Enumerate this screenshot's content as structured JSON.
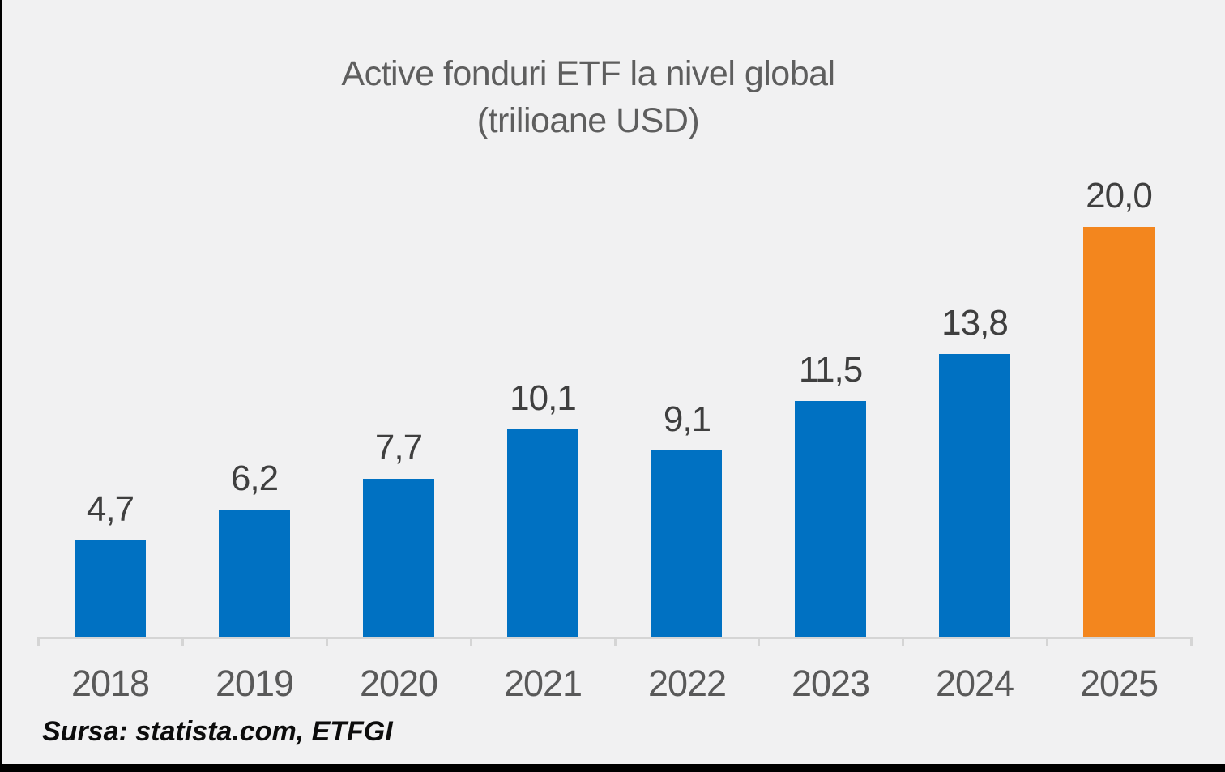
{
  "chart_data": {
    "type": "bar",
    "title": "Active fonduri ETF la nivel global",
    "subtitle": "(trilioane USD)",
    "categories": [
      "2018",
      "2019",
      "2020",
      "2021",
      "2022",
      "2023",
      "2024",
      "2025"
    ],
    "values": [
      4.7,
      6.2,
      7.7,
      10.1,
      9.1,
      11.5,
      13.8,
      20.0
    ],
    "value_labels": [
      "4,7",
      "6,2",
      "7,7",
      "10,1",
      "9,1",
      "11,5",
      "13,8",
      "20,0"
    ],
    "highlight_index": 7,
    "ylim": [
      0,
      20.8
    ],
    "grid": false,
    "legend": "none",
    "source": "Sursa: statista.com, ETFGI",
    "colors": {
      "bar": "#0071C2",
      "highlight_bar": "#F3861E",
      "axis": "#D5D5D5",
      "title_text": "#5E5E5E",
      "category_text": "#595959",
      "value_text": "#3F3F3F",
      "background": "#F1F1F2",
      "frame": "#000000"
    }
  }
}
